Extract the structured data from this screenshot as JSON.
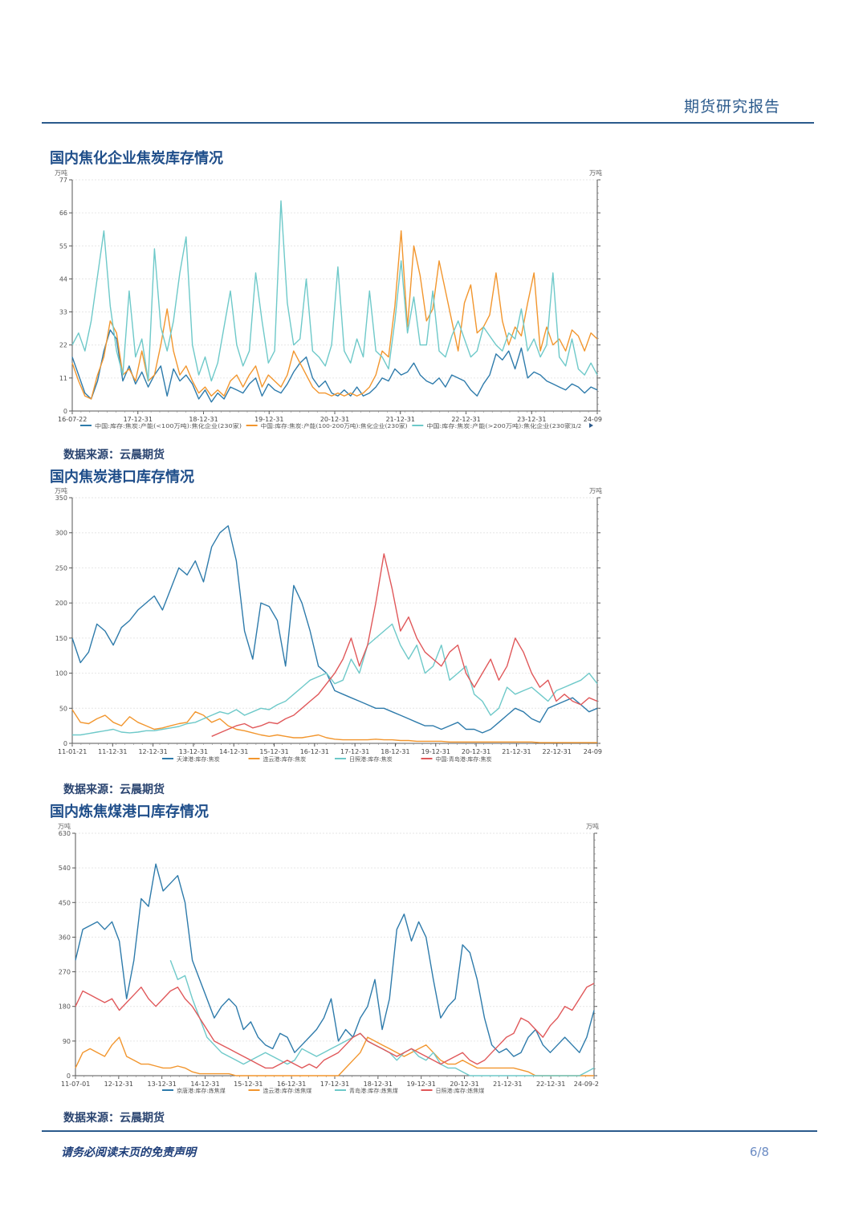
{
  "header": {
    "title": "期货研究报告"
  },
  "footer": {
    "note": "请务必阅读末页的免责声明",
    "page": "6/8"
  },
  "charts": [
    {
      "title": "国内焦化企业焦炭库存情况",
      "source": "数据来源：云晨期货",
      "unit_left": "万吨",
      "unit_right": "万吨",
      "legend_pager": "1/2"
    },
    {
      "title": "国内焦炭港口库存情况",
      "source": "数据来源：云晨期货",
      "unit_left": "万吨",
      "unit_right": "万吨"
    },
    {
      "title": "国内炼焦煤港口库存情况",
      "source": "数据来源：云晨期货",
      "unit_left": "万吨",
      "unit_right": "万吨"
    }
  ],
  "chart_data": [
    {
      "type": "line",
      "ylim": [
        0,
        77
      ],
      "yticks": [
        0,
        11,
        22,
        33,
        44,
        55,
        66,
        77
      ],
      "xticks": [
        "16-07-22",
        "17-12-31",
        "18-12-31",
        "19-12-31",
        "20-12-31",
        "21-12-31",
        "22-12-31",
        "23-12-31",
        "24-09"
      ],
      "series": [
        {
          "name": "中国:库存:焦炭:产能(<100万吨):焦化企业(230家)",
          "color": "#2e7bab",
          "values": [
            18,
            12,
            6,
            4,
            10,
            20,
            27,
            24,
            10,
            15,
            9,
            13,
            8,
            12,
            15,
            5,
            14,
            10,
            12,
            9,
            4,
            7,
            3,
            6,
            4,
            8,
            7,
            6,
            9,
            11,
            5,
            9,
            7,
            6,
            9,
            13,
            16,
            18,
            11,
            8,
            10,
            6,
            5,
            7,
            5,
            8,
            5,
            6,
            8,
            11,
            10,
            14,
            12,
            13,
            16,
            12,
            10,
            9,
            11,
            8,
            12,
            11,
            10,
            7,
            5,
            9,
            12,
            19,
            17,
            20,
            14,
            21,
            11,
            13,
            12,
            10,
            9,
            8,
            7,
            9,
            8,
            6,
            8,
            7
          ]
        },
        {
          "name": "中国:库存:焦炭:产能(100-200万吨):焦化企业(230家)",
          "color": "#f2962e",
          "values": [
            16,
            10,
            5,
            4,
            12,
            18,
            30,
            26,
            12,
            14,
            10,
            20,
            10,
            12,
            22,
            34,
            20,
            12,
            15,
            10,
            6,
            8,
            5,
            7,
            5,
            10,
            12,
            8,
            12,
            15,
            8,
            12,
            10,
            8,
            12,
            20,
            16,
            12,
            8,
            6,
            6,
            5,
            6,
            5,
            6,
            5,
            6,
            8,
            12,
            20,
            18,
            35,
            60,
            28,
            55,
            45,
            30,
            34,
            50,
            40,
            30,
            20,
            36,
            42,
            26,
            28,
            32,
            46,
            30,
            22,
            28,
            25,
            36,
            46,
            20,
            28,
            22,
            24,
            20,
            27,
            25,
            20,
            26,
            24
          ]
        },
        {
          "name": "中国:库存:焦炭:产能(>200万吨):焦化企业(230家)",
          "color": "#6ec9c9",
          "values": [
            22,
            26,
            20,
            30,
            45,
            60,
            35,
            20,
            12,
            40,
            18,
            24,
            10,
            54,
            28,
            20,
            30,
            46,
            58,
            22,
            12,
            18,
            10,
            16,
            28,
            40,
            22,
            15,
            20,
            46,
            30,
            16,
            20,
            70,
            36,
            22,
            24,
            44,
            20,
            18,
            15,
            22,
            48,
            20,
            16,
            24,
            18,
            40,
            20,
            18,
            14,
            30,
            50,
            26,
            38,
            22,
            22,
            40,
            20,
            18,
            25,
            30,
            24,
            18,
            20,
            28,
            25,
            22,
            20,
            26,
            24,
            34,
            20,
            24,
            18,
            22,
            46,
            18,
            15,
            24,
            14,
            12,
            16,
            12
          ]
        }
      ]
    },
    {
      "type": "line",
      "ylim": [
        0,
        350
      ],
      "yticks": [
        0,
        50,
        100,
        150,
        200,
        250,
        300,
        350
      ],
      "xticks": [
        "11-01-21",
        "11-12-31",
        "12-12-31",
        "13-12-31",
        "14-12-31",
        "15-12-31",
        "16-12-31",
        "17-12-31",
        "18-12-31",
        "19-12-31",
        "20-12-31",
        "21-12-31",
        "22-12-31",
        "24-09"
      ],
      "series": [
        {
          "name": "天津港:库存:焦炭",
          "color": "#2e7bab",
          "values": [
            150,
            115,
            130,
            170,
            160,
            140,
            165,
            175,
            190,
            200,
            210,
            190,
            220,
            250,
            240,
            260,
            230,
            280,
            300,
            310,
            260,
            160,
            120,
            200,
            195,
            175,
            110,
            225,
            200,
            160,
            110,
            100,
            75,
            70,
            65,
            60,
            55,
            50,
            50,
            45,
            40,
            35,
            30,
            25,
            25,
            20,
            25,
            30,
            20,
            20,
            15,
            20,
            30,
            40,
            50,
            45,
            35,
            30,
            50,
            55,
            60,
            65,
            55,
            45,
            50
          ]
        },
        {
          "name": "连云港:库存:焦炭",
          "color": "#f2962e",
          "values": [
            48,
            30,
            28,
            35,
            40,
            30,
            25,
            38,
            30,
            25,
            20,
            22,
            25,
            28,
            30,
            45,
            40,
            30,
            35,
            25,
            20,
            18,
            15,
            12,
            10,
            12,
            10,
            8,
            8,
            10,
            12,
            8,
            6,
            5,
            5,
            5,
            5,
            6,
            5,
            5,
            4,
            4,
            3,
            3,
            3,
            3,
            2,
            2,
            2,
            2,
            2,
            2,
            2,
            2,
            2,
            2,
            2,
            1,
            1,
            1,
            1,
            1,
            1,
            1,
            1
          ]
        },
        {
          "name": "日照港:库存:焦炭",
          "color": "#6ec9c9",
          "values": [
            12,
            12,
            14,
            16,
            18,
            20,
            16,
            15,
            16,
            18,
            18,
            20,
            22,
            24,
            28,
            30,
            35,
            40,
            45,
            42,
            48,
            40,
            45,
            50,
            48,
            55,
            60,
            70,
            80,
            90,
            95,
            100,
            85,
            90,
            120,
            100,
            140,
            150,
            160,
            170,
            140,
            120,
            140,
            100,
            110,
            140,
            90,
            100,
            110,
            70,
            60,
            40,
            50,
            80,
            70,
            75,
            80,
            70,
            60,
            75,
            80,
            85,
            90,
            100,
            85
          ]
        },
        {
          "name": "中国:青岛港:库存:焦炭",
          "color": "#e0585a",
          "values": [
            null,
            null,
            null,
            null,
            null,
            null,
            null,
            null,
            null,
            null,
            null,
            null,
            null,
            null,
            null,
            null,
            null,
            10,
            15,
            20,
            25,
            28,
            22,
            25,
            30,
            28,
            35,
            40,
            50,
            60,
            70,
            85,
            100,
            120,
            150,
            110,
            140,
            200,
            270,
            220,
            160,
            180,
            150,
            130,
            120,
            110,
            130,
            140,
            100,
            80,
            100,
            120,
            90,
            110,
            150,
            130,
            100,
            80,
            90,
            60,
            70,
            60,
            55,
            65,
            60
          ]
        }
      ]
    },
    {
      "type": "line",
      "ylim": [
        0,
        630
      ],
      "yticks": [
        0,
        90,
        180,
        270,
        360,
        450,
        540,
        630
      ],
      "xticks": [
        "11-07-01",
        "12-12-31",
        "13-12-31",
        "14-12-31",
        "15-12-31",
        "16-12-31",
        "17-12-31",
        "18-12-31",
        "19-12-31",
        "20-12-31",
        "21-12-31",
        "22-12-31",
        "24-09-2"
      ],
      "series": [
        {
          "name": "京唐港:库存:炼焦煤",
          "color": "#2e7bab",
          "values": [
            300,
            380,
            390,
            400,
            380,
            400,
            350,
            200,
            300,
            460,
            440,
            550,
            480,
            500,
            520,
            450,
            300,
            250,
            200,
            150,
            180,
            200,
            180,
            120,
            140,
            100,
            80,
            70,
            110,
            100,
            60,
            80,
            100,
            120,
            150,
            200,
            90,
            120,
            100,
            150,
            180,
            250,
            120,
            200,
            380,
            420,
            350,
            400,
            360,
            250,
            150,
            180,
            200,
            340,
            320,
            250,
            150,
            80,
            60,
            70,
            50,
            60,
            100,
            120,
            80,
            60,
            80,
            100,
            80,
            60,
            100,
            170
          ]
        },
        {
          "name": "连云港:库存:炼焦煤",
          "color": "#f2962e",
          "values": [
            20,
            60,
            70,
            60,
            50,
            80,
            100,
            50,
            40,
            30,
            30,
            25,
            20,
            20,
            25,
            20,
            10,
            5,
            5,
            5,
            5,
            5,
            0,
            0,
            0,
            0,
            0,
            0,
            0,
            0,
            0,
            0,
            0,
            0,
            0,
            0,
            0,
            20,
            40,
            60,
            100,
            90,
            80,
            70,
            60,
            50,
            60,
            70,
            80,
            60,
            40,
            30,
            30,
            40,
            30,
            20,
            20,
            20,
            20,
            20,
            20,
            15,
            10,
            0,
            0,
            0,
            0,
            0,
            0,
            0,
            0,
            0
          ]
        },
        {
          "name": "青岛港:库存:炼焦煤",
          "color": "#6ec9c9",
          "values": [
            null,
            null,
            null,
            null,
            null,
            null,
            null,
            null,
            null,
            null,
            null,
            null,
            null,
            300,
            250,
            260,
            200,
            150,
            100,
            80,
            60,
            50,
            40,
            30,
            40,
            50,
            60,
            50,
            40,
            30,
            40,
            70,
            60,
            50,
            60,
            70,
            80,
            90,
            100,
            110,
            90,
            80,
            70,
            60,
            40,
            60,
            70,
            50,
            40,
            60,
            30,
            20,
            20,
            10,
            0,
            0,
            0,
            0,
            0,
            0,
            0,
            0,
            0,
            0,
            0,
            0,
            0,
            0,
            0,
            0,
            10,
            20
          ]
        },
        {
          "name": "日照港:库存:炼焦煤",
          "color": "#e0585a",
          "values": [
            180,
            220,
            210,
            200,
            190,
            200,
            170,
            190,
            210,
            230,
            200,
            180,
            200,
            220,
            230,
            200,
            180,
            150,
            120,
            90,
            80,
            70,
            60,
            50,
            40,
            30,
            20,
            20,
            30,
            40,
            30,
            20,
            30,
            20,
            40,
            50,
            60,
            80,
            100,
            110,
            90,
            80,
            70,
            60,
            50,
            60,
            70,
            60,
            50,
            40,
            30,
            40,
            50,
            60,
            40,
            30,
            40,
            60,
            80,
            100,
            110,
            150,
            140,
            120,
            100,
            130,
            150,
            180,
            170,
            200,
            230,
            240
          ]
        }
      ]
    }
  ]
}
